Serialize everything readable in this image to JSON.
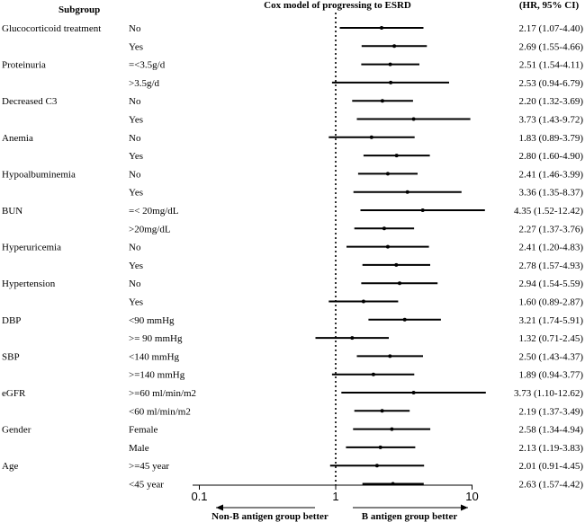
{
  "chart_data": {
    "type": "forest",
    "title": "Cox model of progressing to ESRD",
    "column_headers": {
      "subgroup": "Subgroup",
      "hr": "(HR, 95% CI)"
    },
    "x_scale": "log",
    "x_ticks": [
      "0.1",
      "1",
      "10"
    ],
    "x_range": [
      0.1,
      13
    ],
    "reference_line": 1,
    "footer_left": "Non-B antigen group better",
    "footer_right": "B antigen group better",
    "rows": [
      {
        "group": "Glucocorticoid treatment",
        "level": "No",
        "hr": 2.17,
        "lo": 1.07,
        "hi": 4.4,
        "label": "2.17 (1.07-4.40)"
      },
      {
        "group": "",
        "level": "Yes",
        "hr": 2.69,
        "lo": 1.55,
        "hi": 4.66,
        "label": "2.69 (1.55-4.66)"
      },
      {
        "group": "Proteinuria",
        "level": "=<3.5g/d",
        "hr": 2.51,
        "lo": 1.54,
        "hi": 4.11,
        "label": "2.51 (1.54-4.11)"
      },
      {
        "group": "",
        "level": ">3.5g/d",
        "hr": 2.53,
        "lo": 0.94,
        "hi": 6.79,
        "label": "2.53 (0.94-6.79)"
      },
      {
        "group": "Decreased C3",
        "level": "No",
        "hr": 2.2,
        "lo": 1.32,
        "hi": 3.69,
        "label": "2.20 (1.32-3.69)"
      },
      {
        "group": "",
        "level": "Yes",
        "hr": 3.73,
        "lo": 1.43,
        "hi": 9.72,
        "label": "3.73 (1.43-9.72)"
      },
      {
        "group": "Anemia",
        "level": "No",
        "hr": 1.83,
        "lo": 0.89,
        "hi": 3.79,
        "label": "1.83 (0.89-3.79)"
      },
      {
        "group": "",
        "level": "Yes",
        "hr": 2.8,
        "lo": 1.6,
        "hi": 4.9,
        "label": "2.80 (1.60-4.90)"
      },
      {
        "group": "Hypoalbuminemia",
        "level": "No",
        "hr": 2.41,
        "lo": 1.46,
        "hi": 3.99,
        "label": "2.41 (1.46-3.99)"
      },
      {
        "group": "",
        "level": "Yes",
        "hr": 3.36,
        "lo": 1.35,
        "hi": 8.37,
        "label": "3.36 (1.35-8.37)"
      },
      {
        "group": "BUN",
        "level": "=< 20mg/dL",
        "hr": 4.35,
        "lo": 1.52,
        "hi": 12.42,
        "label": "4.35 (1.52-12.42)"
      },
      {
        "group": "",
        "level": ">20mg/dL",
        "hr": 2.27,
        "lo": 1.37,
        "hi": 3.76,
        "label": "2.27 (1.37-3.76)"
      },
      {
        "group": "Hyperuricemia",
        "level": "No",
        "hr": 2.41,
        "lo": 1.2,
        "hi": 4.83,
        "label": "2.41 (1.20-4.83)"
      },
      {
        "group": "",
        "level": "Yes",
        "hr": 2.78,
        "lo": 1.57,
        "hi": 4.93,
        "label": "2.78 (1.57-4.93)"
      },
      {
        "group": "Hypertension",
        "level": "No",
        "hr": 2.94,
        "lo": 1.54,
        "hi": 5.59,
        "label": "2.94 (1.54-5.59)"
      },
      {
        "group": "",
        "level": "Yes",
        "hr": 1.6,
        "lo": 0.89,
        "hi": 2.87,
        "label": "1.60 (0.89-2.87)"
      },
      {
        "group": "DBP",
        "level": "<90 mmHg",
        "hr": 3.21,
        "lo": 1.74,
        "hi": 5.91,
        "label": "3.21 (1.74-5.91)"
      },
      {
        "group": "",
        "level": ">= 90 mmHg",
        "hr": 1.32,
        "lo": 0.71,
        "hi": 2.45,
        "label": "1.32 (0.71-2.45)"
      },
      {
        "group": "SBP",
        "level": "<140 mmHg",
        "hr": 2.5,
        "lo": 1.43,
        "hi": 4.37,
        "label": "2.50 (1.43-4.37)"
      },
      {
        "group": "",
        "level": ">=140 mmHg",
        "hr": 1.89,
        "lo": 0.94,
        "hi": 3.77,
        "label": "1.89 (0.94-3.77)"
      },
      {
        "group": "eGFR",
        "level": ">=60 ml/min/m2",
        "hr": 3.73,
        "lo": 1.1,
        "hi": 12.62,
        "label": "3.73 (1.10-12.62)"
      },
      {
        "group": "",
        "level": "<60 ml/min/m2",
        "hr": 2.19,
        "lo": 1.37,
        "hi": 3.49,
        "label": "2.19 (1.37-3.49)"
      },
      {
        "group": "Gender",
        "level": "Female",
        "hr": 2.58,
        "lo": 1.34,
        "hi": 4.94,
        "label": "2.58 (1.34-4.94)"
      },
      {
        "group": "",
        "level": "Male",
        "hr": 2.13,
        "lo": 1.19,
        "hi": 3.83,
        "label": "2.13 (1.19-3.83)"
      },
      {
        "group": "Age",
        "level": ">=45 year",
        "hr": 2.01,
        "lo": 0.91,
        "hi": 4.45,
        "label": "2.01 (0.91-4.45)"
      },
      {
        "group": "",
        "level": "<45 year",
        "hr": 2.63,
        "lo": 1.57,
        "hi": 4.42,
        "label": "2.63 (1.57-4.42)"
      }
    ]
  }
}
